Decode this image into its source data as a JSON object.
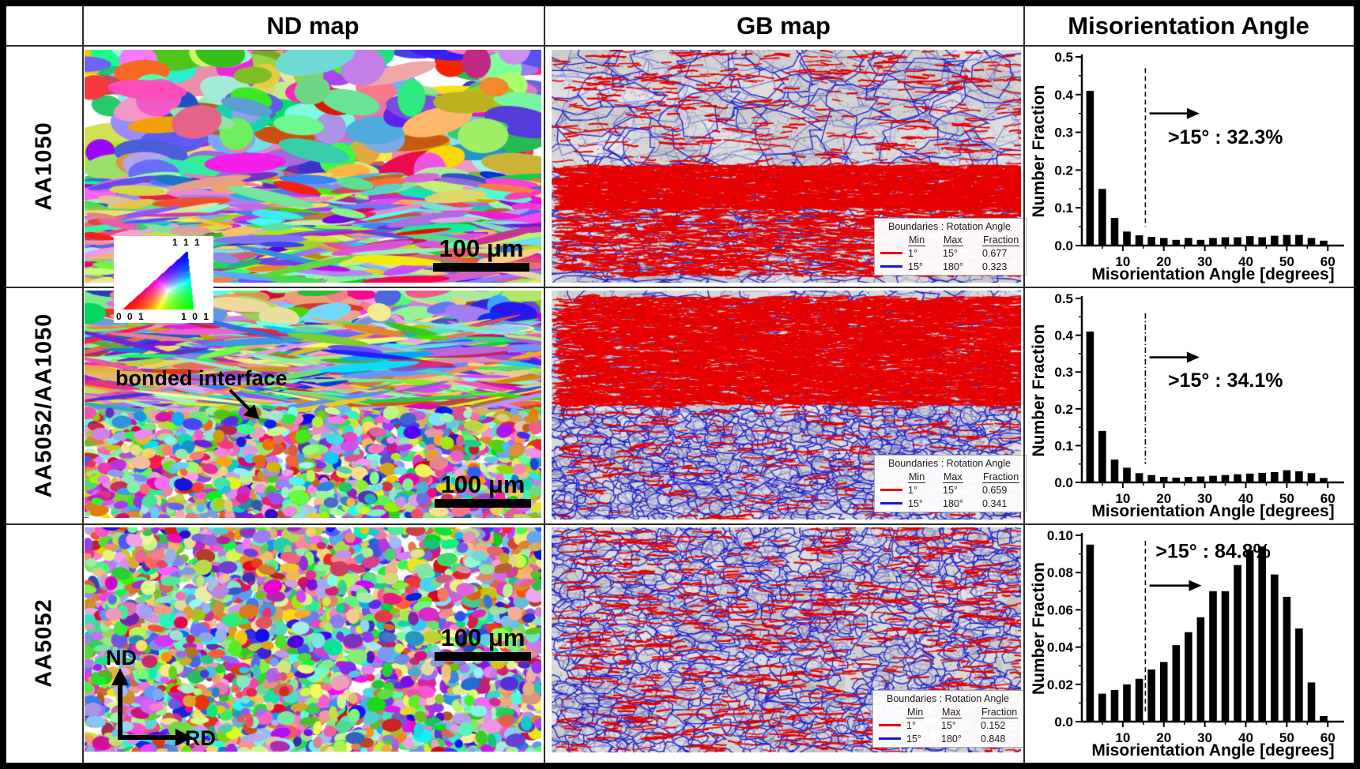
{
  "figure": {
    "header": {
      "nd_col": "ND map",
      "gb_col": "GB map",
      "mis_col": "Misorientation Angle"
    },
    "ipf_legend": {
      "label_111": "1 1 1",
      "label_001": "0 0 1",
      "label_101": "1 0 1"
    },
    "rows": [
      {
        "label": "AA1050",
        "nd_map": {
          "scale_bar": "100 μm"
        },
        "gb_map": {
          "legend": {
            "title": "Boundaries : Rotation Angle",
            "columns": {
              "min": "Min",
              "max": "Max",
              "fraction": "Fraction"
            },
            "lagb": {
              "min": "1°",
              "max": "15°",
              "fraction": "0.677",
              "color": "#ee0000"
            },
            "hagb": {
              "min": "15°",
              "max": "180°",
              "fraction": "0.323",
              "color": "#1515dd"
            }
          }
        }
      },
      {
        "label": "AA5052/AA1050",
        "nd_map": {
          "scale_bar": "100 μm",
          "annotation": "bonded interface"
        },
        "gb_map": {
          "legend": {
            "title": "Boundaries : Rotation Angle",
            "columns": {
              "min": "Min",
              "max": "Max",
              "fraction": "Fraction"
            },
            "lagb": {
              "min": "1°",
              "max": "15°",
              "fraction": "0.659",
              "color": "#ee0000"
            },
            "hagb": {
              "min": "15°",
              "max": "180°",
              "fraction": "0.341",
              "color": "#1515dd"
            }
          }
        }
      },
      {
        "label": "AA5052",
        "nd_map": {
          "scale_bar": "100 μm",
          "axis_vertical": "ND",
          "axis_horizontal": "RD"
        },
        "gb_map": {
          "legend": {
            "title": "Boundaries : Rotation Angle",
            "columns": {
              "min": "Min",
              "max": "Max",
              "fraction": "Fraction"
            },
            "lagb": {
              "min": "1°",
              "max": "15°",
              "fraction": "0.152",
              "color": "#ee0000"
            },
            "hagb": {
              "min": "15°",
              "max": "180°",
              "fraction": "0.848",
              "color": "#1515dd"
            }
          }
        }
      }
    ]
  },
  "chart_data": [
    {
      "type": "bar",
      "title": "",
      "sample": "AA1050",
      "xlabel": "Misorientation Angle [degrees]",
      "ylabel": "Number Fraction",
      "xlim": [
        0,
        64
      ],
      "ylim": [
        0,
        0.5
      ],
      "xticks": [
        10,
        20,
        30,
        40,
        50,
        60
      ],
      "yticks": [
        0,
        0.1,
        0.2,
        0.3,
        0.4,
        0.5
      ],
      "ytick_labels": [
        "0.0",
        "0.1",
        "0.2",
        "0.3",
        "0.4",
        "0.5"
      ],
      "bin_width": 3,
      "x": [
        2,
        5,
        8,
        11,
        14,
        17,
        20,
        23,
        26,
        29,
        32,
        35,
        38,
        41,
        44,
        47,
        50,
        53,
        56,
        59
      ],
      "values": [
        0.41,
        0.15,
        0.073,
        0.037,
        0.027,
        0.023,
        0.02,
        0.015,
        0.02,
        0.015,
        0.02,
        0.022,
        0.022,
        0.025,
        0.022,
        0.026,
        0.028,
        0.028,
        0.02,
        0.013
      ],
      "bar_color": "#000000",
      "threshold_x": 15.5,
      "dash_range": [
        0.05,
        0.47
      ],
      "dash_pattern": "6,4",
      "arrow": {
        "x1": 16.5,
        "x2": 26,
        "y": 0.35
      },
      "annotation": ">15° : 32.3%",
      "annotation_pos": {
        "x": 21,
        "y": 0.27
      },
      "grid": false
    },
    {
      "type": "bar",
      "title": "",
      "sample": "AA5052/AA1050",
      "xlabel": "Misorientation Angle [degrees]",
      "ylabel": "Number Fraction",
      "xlim": [
        0,
        64
      ],
      "ylim": [
        0,
        0.5
      ],
      "xticks": [
        10,
        20,
        30,
        40,
        50,
        60
      ],
      "yticks": [
        0,
        0.1,
        0.2,
        0.3,
        0.4,
        0.5
      ],
      "ytick_labels": [
        "0.0",
        "0.1",
        "0.2",
        "0.3",
        "0.4",
        "0.5"
      ],
      "bin_width": 3,
      "x": [
        2,
        5,
        8,
        11,
        14,
        17,
        20,
        23,
        26,
        29,
        32,
        35,
        38,
        41,
        44,
        47,
        50,
        53,
        56,
        59
      ],
      "values": [
        0.41,
        0.14,
        0.062,
        0.04,
        0.025,
        0.02,
        0.015,
        0.013,
        0.015,
        0.016,
        0.018,
        0.02,
        0.022,
        0.024,
        0.026,
        0.028,
        0.033,
        0.03,
        0.025,
        0.012
      ],
      "bar_color": "#000000",
      "threshold_x": 15.5,
      "dash_range": [
        0.05,
        0.46
      ],
      "dash_pattern": "7,3,1.5,3",
      "arrow": {
        "x1": 16.5,
        "x2": 26,
        "y": 0.34
      },
      "annotation": ">15° : 34.1%",
      "annotation_pos": {
        "x": 21,
        "y": 0.26
      },
      "grid": false
    },
    {
      "type": "bar",
      "title": "",
      "sample": "AA5052",
      "xlabel": "Misorientation Angle [degrees]",
      "ylabel": "Number Fraction",
      "xlim": [
        0,
        64
      ],
      "ylim": [
        0,
        0.1
      ],
      "xticks": [
        10,
        20,
        30,
        40,
        50,
        60
      ],
      "yticks": [
        0,
        0.02,
        0.04,
        0.06,
        0.08,
        0.1
      ],
      "ytick_labels": [
        "0.0",
        "0.02",
        "0.04",
        "0.06",
        "0.08",
        "0.10"
      ],
      "bin_width": 3,
      "x": [
        2,
        5,
        8,
        11,
        14,
        17,
        20,
        23,
        26,
        29,
        32,
        35,
        38,
        41,
        44,
        47,
        50,
        53,
        56,
        59
      ],
      "values": [
        0.095,
        0.015,
        0.017,
        0.02,
        0.023,
        0.028,
        0.032,
        0.041,
        0.048,
        0.056,
        0.07,
        0.07,
        0.084,
        0.092,
        0.094,
        0.079,
        0.067,
        0.05,
        0.021,
        0.003
      ],
      "bar_color": "#000000",
      "threshold_x": 15.5,
      "dash_range": [
        0.004,
        0.097
      ],
      "dash_pattern": "6,4",
      "arrow": {
        "x1": 16.5,
        "x2": 26.5,
        "y": 0.073
      },
      "annotation": ">15° : 84.8%",
      "annotation_pos": {
        "x": 18,
        "y": 0.088
      },
      "grid": false
    }
  ]
}
